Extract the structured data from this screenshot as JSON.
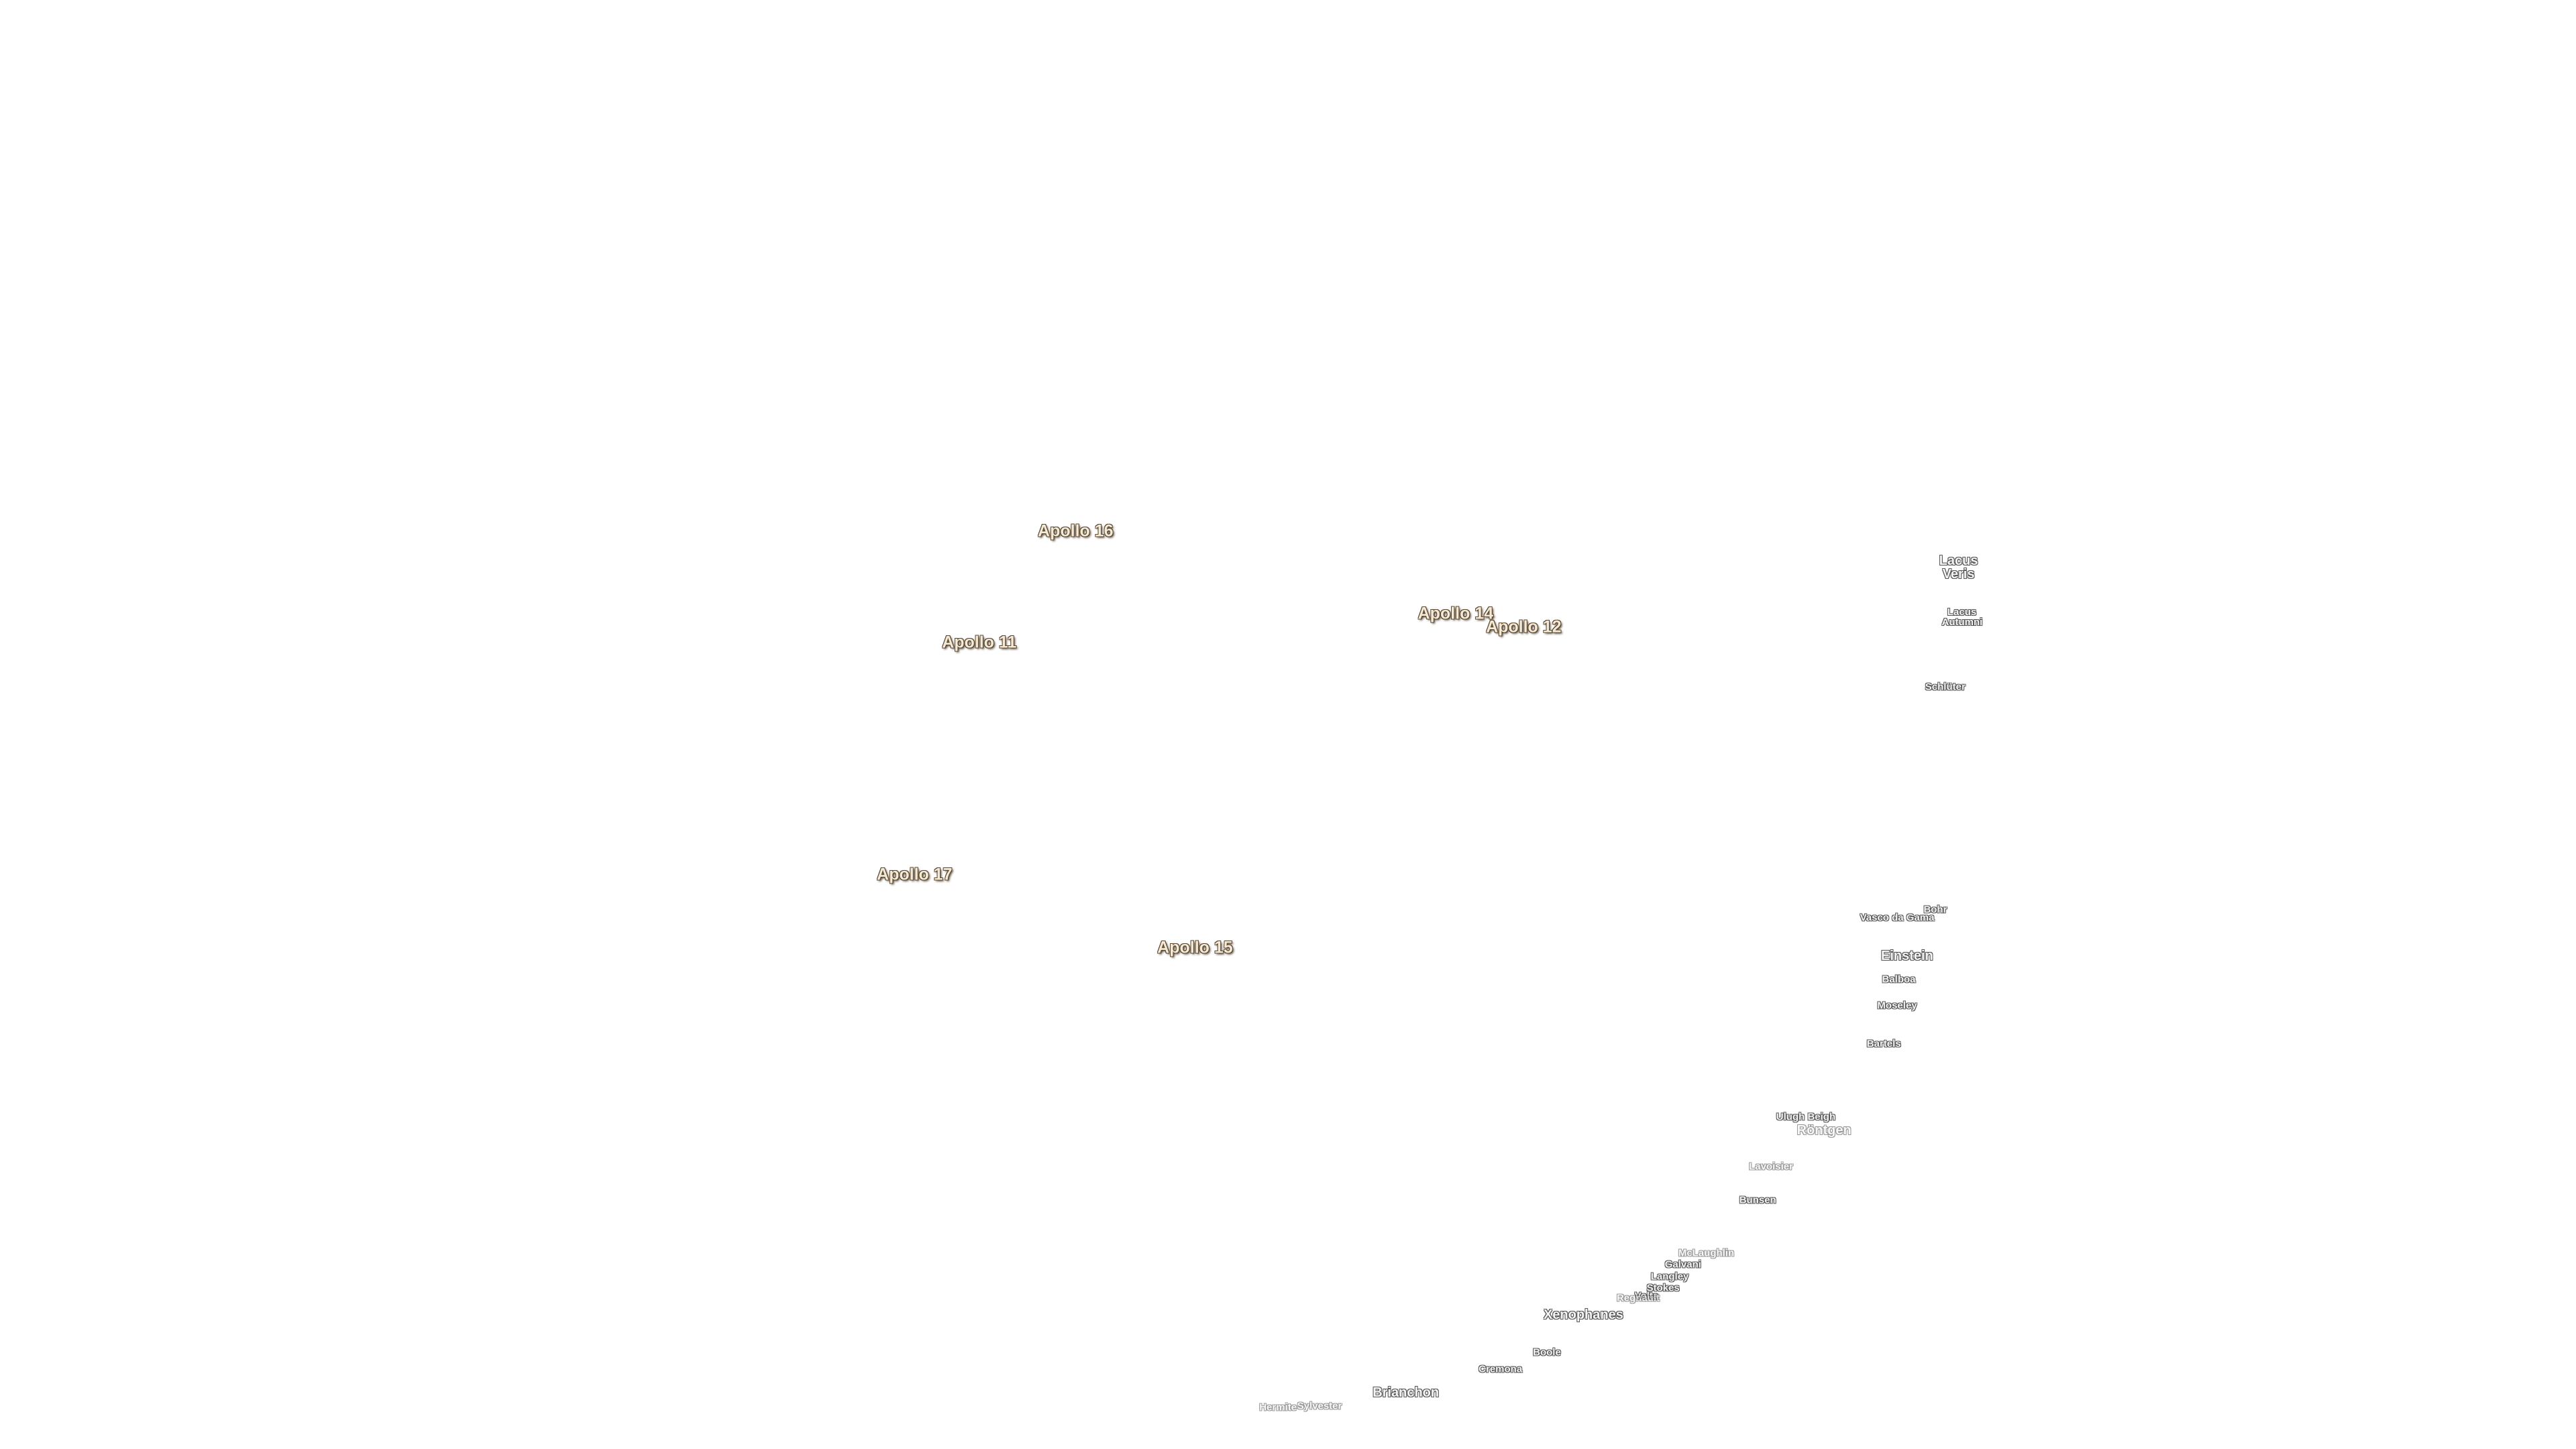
{
  "apollo_sites": [
    "Apollo 16",
    "Apollo 11",
    "Apollo 14",
    "Apollo 12",
    "Apollo 17",
    "Apollo 15"
  ],
  "features": [
    "Lacus Veris",
    "Lacus Autumni",
    "Schlüter",
    "Bohr",
    "Vasco da Gama",
    "Einstein",
    "Balboa",
    "Moseley",
    "Bartels",
    "Ulugh Beigh",
    "Röntgen",
    "Lavoisier",
    "Bunsen",
    "McLaughlin",
    "Galvani",
    "Langley",
    "Stokes",
    "Volta",
    "Regnault",
    "Xenophanes",
    "Boole",
    "Cremona",
    "Brianchon",
    "Hermite",
    "Sylvester"
  ]
}
